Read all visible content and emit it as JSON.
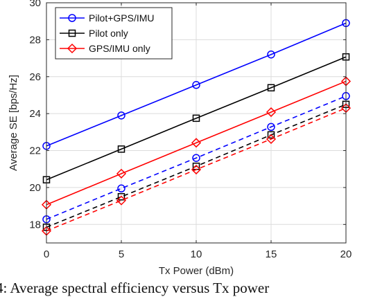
{
  "chart_data": {
    "type": "line",
    "xlabel": "Tx Power (dBm)",
    "ylabel": "Average SE [bps/Hz]",
    "xlim": [
      0,
      20
    ],
    "ylim": [
      17,
      30
    ],
    "xticks": [
      "0",
      "5",
      "10",
      "15",
      "20"
    ],
    "yticks": [
      "18",
      "20",
      "22",
      "24",
      "26",
      "28",
      "30"
    ],
    "grid": true,
    "legend_position": "top-left",
    "x": [
      0,
      5,
      10,
      15,
      20
    ],
    "series": [
      {
        "name": "Pilot+GPS/IMU",
        "color": "#0000ff",
        "marker": "circle",
        "style": "solid",
        "values": [
          22.25,
          23.9,
          25.55,
          27.2,
          28.9
        ]
      },
      {
        "name": "Pilot only",
        "color": "#000000",
        "marker": "square",
        "style": "solid",
        "values": [
          20.42,
          22.08,
          23.75,
          25.4,
          27.07
        ]
      },
      {
        "name": "GPS/IMU only",
        "color": "#ff0000",
        "marker": "diamond",
        "style": "solid",
        "values": [
          19.07,
          20.75,
          22.42,
          24.08,
          25.75
        ]
      },
      {
        "color": "#0000ff",
        "marker": "circle",
        "style": "dashed",
        "values": [
          18.28,
          19.95,
          21.6,
          23.28,
          24.95
        ]
      },
      {
        "color": "#000000",
        "marker": "square",
        "style": "dashed",
        "values": [
          17.85,
          19.5,
          21.15,
          22.85,
          24.5
        ]
      },
      {
        "color": "#ff0000",
        "marker": "diamond",
        "style": "dashed",
        "values": [
          17.65,
          19.3,
          20.97,
          22.62,
          24.3
        ]
      }
    ]
  },
  "caption": "4: Average spectral efficiency versus Tx power"
}
